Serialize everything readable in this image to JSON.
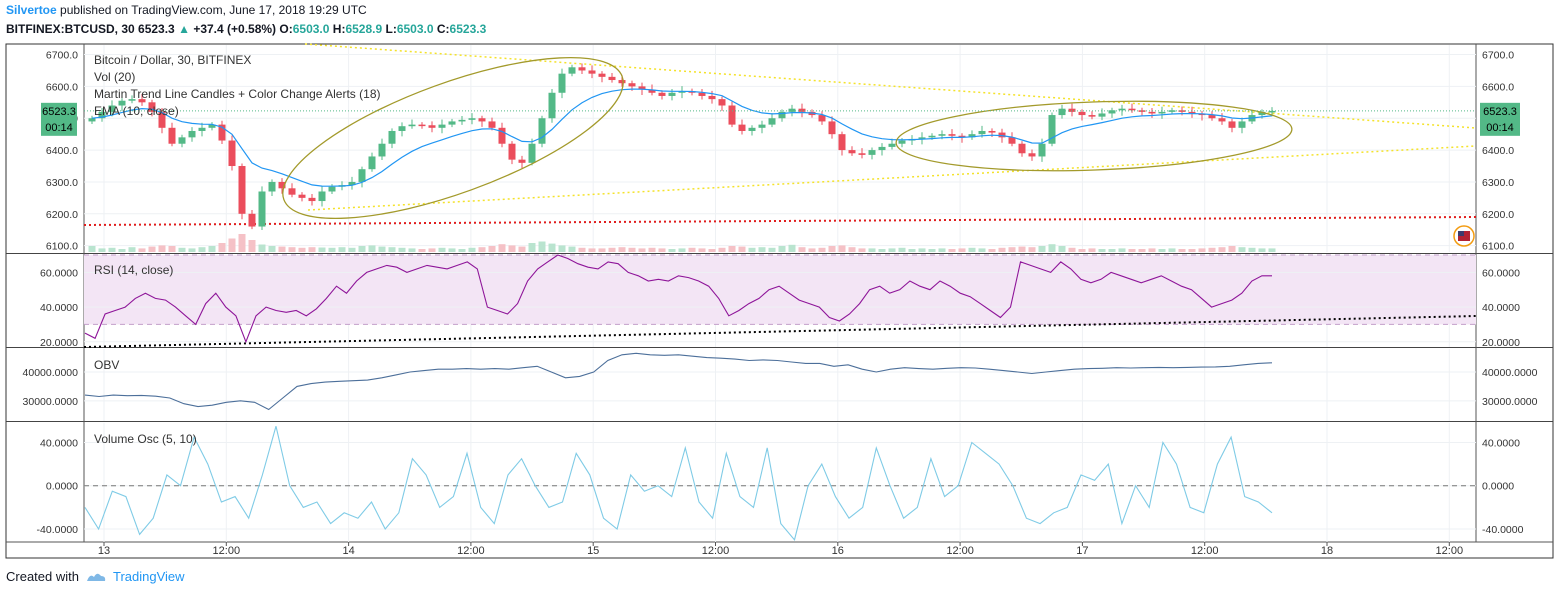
{
  "header": {
    "author": "Silvertoe",
    "published": "published on TradingView.com, June 17, 2018 19:29 UTC",
    "symbol": "BITFINEX:BTCUSD, 30",
    "last": "6523.3",
    "change_arrow": "▲",
    "change": "+37.4 (+0.58%)",
    "o_label": "O:",
    "o": "6503.0",
    "h_label": "H:",
    "h": "6528.9",
    "l_label": "L:",
    "l": "6503.0",
    "c_label": "C:",
    "c": "6523.3"
  },
  "footer": {
    "created_with": "Created with",
    "brand": "TradingView"
  },
  "colors": {
    "up": "#53b987",
    "down": "#eb4d5c",
    "ema": "#2196f3",
    "rsi": "#8e1599",
    "rsi_band": "#f3e5f5",
    "obv": "#4c6f9a",
    "vosc": "#7fcbe6",
    "ellipse": "#a39a2b",
    "trend_yellow": "#f4e22a",
    "support_red": "#e01c1c",
    "price_tag": "#53b987"
  },
  "chart_data": [
    {
      "type": "candlestick",
      "title": "Bitcoin / Dollar, 30, BITFINEX",
      "legend": [
        "Vol (20)",
        "Martin Trend Line Candles + Color Change Alerts (18)",
        "EMA (10, close)"
      ],
      "x_ticks": [
        "13",
        "12:00",
        "14",
        "12:00",
        "15",
        "12:00",
        "16",
        "12:00",
        "17",
        "12:00",
        "18",
        "12:00"
      ],
      "y_ticks": [
        "6700.0",
        "6600.0",
        "6500.0",
        "6400.0",
        "6300.0",
        "6200.0",
        "6100.0"
      ],
      "ylim": [
        6080,
        6730
      ],
      "last_price_label": "6523.3",
      "countdown_label": "00:14",
      "close": [
        6500,
        6520,
        6540,
        6555,
        6560,
        6550,
        6520,
        6470,
        6420,
        6440,
        6460,
        6470,
        6480,
        6430,
        6350,
        6200,
        6160,
        6270,
        6300,
        6280,
        6260,
        6250,
        6240,
        6270,
        6285,
        6290,
        6300,
        6340,
        6380,
        6420,
        6460,
        6475,
        6480,
        6478,
        6470,
        6480,
        6490,
        6495,
        6500,
        6490,
        6470,
        6420,
        6370,
        6360,
        6420,
        6500,
        6580,
        6640,
        6660,
        6650,
        6640,
        6630,
        6620,
        6610,
        6600,
        6590,
        6580,
        6570,
        6580,
        6585,
        6580,
        6570,
        6560,
        6540,
        6480,
        6460,
        6470,
        6480,
        6500,
        6520,
        6530,
        6520,
        6510,
        6490,
        6450,
        6400,
        6390,
        6385,
        6400,
        6410,
        6420,
        6430,
        6435,
        6440,
        6445,
        6450,
        6445,
        6440,
        6450,
        6460,
        6455,
        6440,
        6420,
        6390,
        6380,
        6420,
        6510,
        6530,
        6520,
        6510,
        6505,
        6515,
        6525,
        6530,
        6525,
        6520,
        6515,
        6520,
        6525,
        6520,
        6515,
        6510,
        6500,
        6490,
        6470,
        6490,
        6510,
        6520,
        6523
      ],
      "volume": [
        20,
        12,
        14,
        10,
        16,
        12,
        18,
        22,
        20,
        14,
        12,
        16,
        20,
        30,
        45,
        60,
        40,
        25,
        20,
        18,
        16,
        14,
        16,
        15,
        14,
        16,
        14,
        20,
        22,
        18,
        16,
        14,
        12,
        10,
        12,
        14,
        12,
        10,
        14,
        16,
        20,
        26,
        22,
        18,
        30,
        35,
        28,
        22,
        18,
        14,
        12,
        12,
        14,
        16,
        14,
        12,
        14,
        12,
        10,
        12,
        14,
        12,
        10,
        14,
        20,
        18,
        14,
        16,
        14,
        20,
        24,
        16,
        12,
        14,
        20,
        22,
        16,
        12,
        12,
        10,
        12,
        14,
        10,
        12,
        10,
        12,
        10,
        12,
        14,
        12,
        10,
        14,
        16,
        18,
        16,
        20,
        26,
        20,
        14,
        10,
        12,
        10,
        10,
        12,
        10,
        10,
        12,
        10,
        12,
        10,
        10,
        12,
        14,
        16,
        20,
        16,
        14,
        12,
        12
      ]
    },
    {
      "type": "line",
      "title": "RSI (14, close)",
      "y_ticks": [
        "60.0000",
        "40.0000",
        "20.0000"
      ],
      "ylim": [
        17,
        70
      ],
      "band": [
        30,
        70
      ],
      "values": [
        25,
        22,
        36,
        38,
        40,
        45,
        48,
        45,
        44,
        40,
        35,
        30,
        42,
        48,
        40,
        35,
        20,
        35,
        40,
        38,
        37,
        38,
        35,
        39,
        45,
        52,
        48,
        55,
        60,
        62,
        64,
        63,
        60,
        62,
        64,
        63,
        62,
        64,
        66,
        62,
        40,
        38,
        36,
        42,
        55,
        62,
        66,
        70,
        68,
        65,
        63,
        62,
        66,
        65,
        60,
        58,
        55,
        56,
        55,
        58,
        57,
        55,
        52,
        45,
        35,
        38,
        42,
        45,
        50,
        52,
        48,
        44,
        42,
        40,
        34,
        32,
        36,
        42,
        50,
        52,
        48,
        50,
        55,
        52,
        50,
        55,
        52,
        48,
        46,
        42,
        38,
        34,
        40,
        66,
        64,
        62,
        60,
        66,
        62,
        56,
        54,
        56,
        60,
        58,
        56,
        54,
        56,
        58,
        55,
        52,
        50,
        45,
        40,
        42,
        44,
        48,
        55,
        58,
        58
      ]
    },
    {
      "type": "line",
      "title": "OBV",
      "y_ticks": [
        "40000.0000",
        "30000.0000"
      ],
      "ylim": [
        23000,
        48000
      ],
      "values": [
        32000,
        31500,
        32000,
        31800,
        31900,
        31600,
        31000,
        29000,
        28000,
        28500,
        29500,
        30000,
        29500,
        27000,
        31000,
        35000,
        36000,
        36500,
        36800,
        37000,
        37200,
        38000,
        39000,
        40000,
        40500,
        41000,
        41000,
        41200,
        41000,
        41200,
        41000,
        41500,
        42000,
        40000,
        38000,
        38500,
        40000,
        44000,
        46000,
        46500,
        46000,
        45800,
        46000,
        45500,
        45000,
        44800,
        44500,
        44000,
        44200,
        44000,
        43500,
        43000,
        43000,
        42000,
        42500,
        41000,
        40000,
        41000,
        41500,
        41200,
        41000,
        41300,
        41500,
        41400,
        41000,
        40500,
        40000,
        39500,
        40000,
        40500,
        41000,
        41200,
        41300,
        41500,
        41400,
        41500,
        41600,
        41500,
        41600,
        41700,
        41800,
        42000,
        42500,
        43000,
        43200
      ]
    },
    {
      "type": "line",
      "title": "Volume Osc (5, 10)",
      "y_ticks": [
        "40.0000",
        "0.0000",
        "-40.0000"
      ],
      "ylim": [
        -52,
        58
      ],
      "values": [
        -20,
        -40,
        -5,
        -10,
        -45,
        -30,
        10,
        0,
        45,
        20,
        -15,
        -10,
        -30,
        10,
        55,
        0,
        -20,
        -15,
        -35,
        -25,
        -30,
        -15,
        -40,
        -25,
        25,
        10,
        -20,
        -10,
        30,
        -20,
        -35,
        10,
        25,
        0,
        -20,
        -15,
        30,
        10,
        -30,
        -40,
        10,
        -5,
        0,
        -10,
        35,
        -15,
        -30,
        30,
        -10,
        -20,
        35,
        -35,
        -50,
        0,
        20,
        -10,
        -30,
        -20,
        35,
        0,
        -30,
        -20,
        25,
        -10,
        0,
        40,
        30,
        20,
        0,
        -30,
        -35,
        -25,
        -20,
        10,
        5,
        20,
        -35,
        0,
        -20,
        40,
        20,
        -20,
        -25,
        20,
        45,
        -10,
        -15,
        -25
      ]
    }
  ]
}
